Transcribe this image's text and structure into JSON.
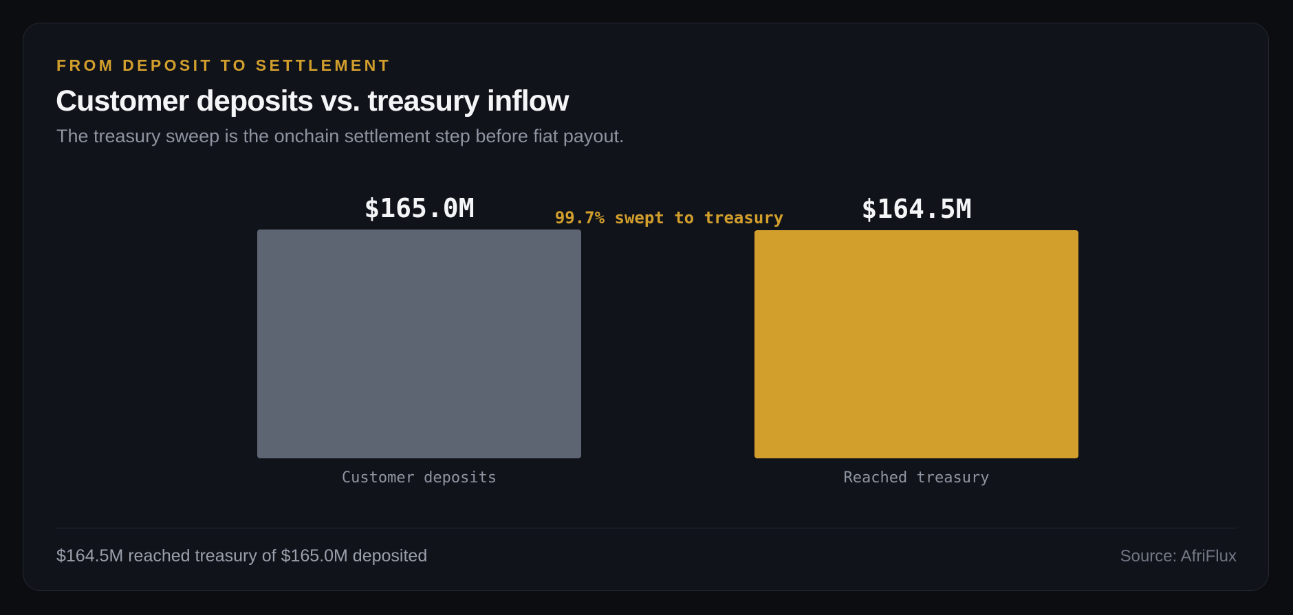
{
  "card": {
    "eyebrow": "FROM DEPOSIT TO SETTLEMENT",
    "title": "Customer deposits vs. treasury inflow",
    "subtitle": "The treasury sweep is the onchain settlement step before fiat payout."
  },
  "chart_data": {
    "type": "bar",
    "categories": [
      "Customer deposits",
      "Reached treasury"
    ],
    "values": [
      165.0,
      164.5
    ],
    "unit": "$M",
    "value_labels": [
      "$165.0M",
      "$164.5M"
    ],
    "bar_colors": [
      "#5d6472",
      "#d39f2c"
    ],
    "annotation": "99.7% swept to treasury",
    "annotation_color": "#d39f2c",
    "ylim": [
      0,
      165.0
    ],
    "grid": false,
    "legend": "none"
  },
  "footer": {
    "summary": "$164.5M reached treasury of $165.0M deposited",
    "source": "Source: AfriFlux"
  },
  "colors": {
    "background": "#0b0d11",
    "card": "#10131a",
    "accent": "#d39f2c",
    "title": "#f4f5f7",
    "muted": "#8f95a0"
  }
}
